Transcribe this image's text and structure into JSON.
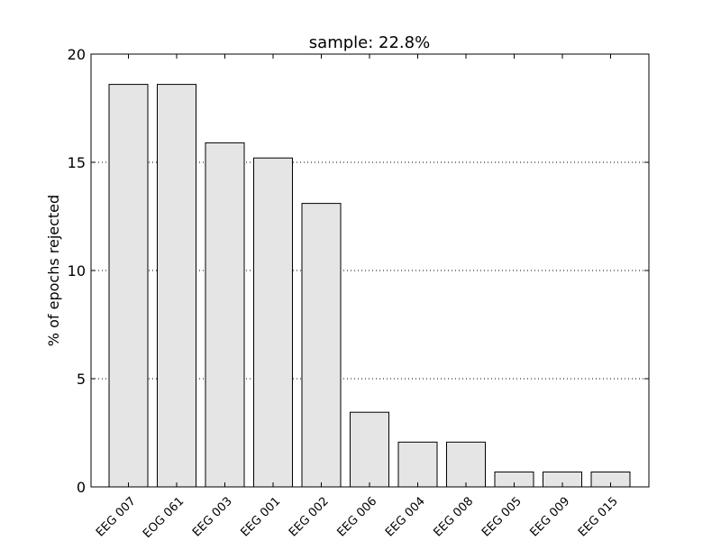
{
  "chart_data": {
    "type": "bar",
    "title": "sample: 22.8%",
    "xlabel": "",
    "ylabel": "% of epochs rejected",
    "categories": [
      "EEG 007",
      "EOG 061",
      "EEG 003",
      "EEG 001",
      "EEG 002",
      "EEG 006",
      "EEG 004",
      "EEG 008",
      "EEG 005",
      "EEG 009",
      "EEG 015"
    ],
    "values": [
      18.6,
      18.6,
      15.9,
      15.2,
      13.1,
      3.45,
      2.07,
      2.07,
      0.69,
      0.69,
      0.69
    ],
    "ylim": [
      0,
      20
    ],
    "yticks": [
      0,
      5,
      10,
      15,
      20
    ],
    "grid": "y-dotted",
    "bar_color": "#e5e5e5",
    "edge_color": "#000000"
  }
}
